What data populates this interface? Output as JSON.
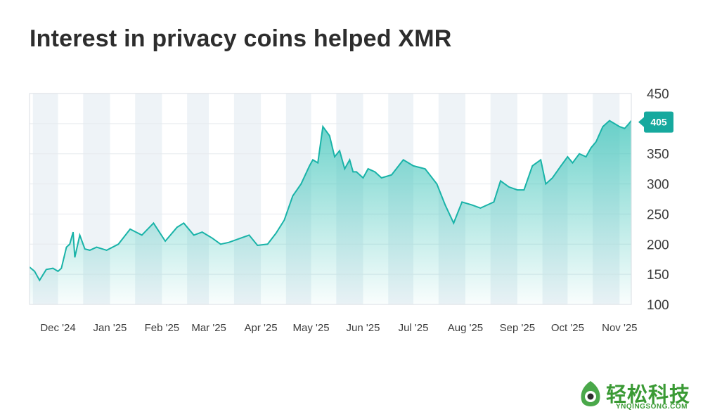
{
  "title": "Interest in privacy coins helped XMR",
  "chart_data": {
    "type": "area",
    "ylim": [
      100,
      450
    ],
    "yticks": [
      100,
      150,
      200,
      250,
      300,
      350,
      400,
      450
    ],
    "x_months": [
      "Dec '24",
      "Jan '25",
      "Feb '25",
      "Mar '25",
      "Apr '25",
      "May '25",
      "Jun '25",
      "Jul '25",
      "Aug '25",
      "Sep '25",
      "Oct '25",
      "Nov '25"
    ],
    "last_value_label": "405",
    "colors": {
      "line": "#19b3a8",
      "fill_top": "#4ecdc4",
      "band": "#eef3f7",
      "callout": "#16a99e"
    },
    "x": [
      "2024-11-14",
      "2024-11-17",
      "2024-11-20",
      "2024-11-24",
      "2024-11-28",
      "2024-12-01",
      "2024-12-03",
      "2024-12-06",
      "2024-12-08",
      "2024-12-10",
      "2024-12-11",
      "2024-12-14",
      "2024-12-17",
      "2024-12-20",
      "2024-12-24",
      "2024-12-30",
      "2025-01-06",
      "2025-01-13",
      "2025-01-20",
      "2025-01-27",
      "2025-02-03",
      "2025-02-10",
      "2025-02-14",
      "2025-02-20",
      "2025-02-25",
      "2025-03-03",
      "2025-03-08",
      "2025-03-13",
      "2025-03-20",
      "2025-03-25",
      "2025-03-30",
      "2025-04-05",
      "2025-04-10",
      "2025-04-15",
      "2025-04-20",
      "2025-04-25",
      "2025-04-30",
      "2025-05-02",
      "2025-05-05",
      "2025-05-08",
      "2025-05-12",
      "2025-05-15",
      "2025-05-18",
      "2025-05-21",
      "2025-05-24",
      "2025-05-26",
      "2025-05-28",
      "2025-06-01",
      "2025-06-04",
      "2025-06-08",
      "2025-06-12",
      "2025-06-18",
      "2025-06-25",
      "2025-07-01",
      "2025-07-08",
      "2025-07-15",
      "2025-07-20",
      "2025-07-25",
      "2025-07-30",
      "2025-08-05",
      "2025-08-10",
      "2025-08-14",
      "2025-08-18",
      "2025-08-22",
      "2025-08-27",
      "2025-09-01",
      "2025-09-05",
      "2025-09-10",
      "2025-09-15",
      "2025-09-18",
      "2025-09-22",
      "2025-09-27",
      "2025-10-01",
      "2025-10-04",
      "2025-10-08",
      "2025-10-12",
      "2025-10-15",
      "2025-10-18",
      "2025-10-22",
      "2025-10-26",
      "2025-10-29",
      "2025-11-01",
      "2025-11-04",
      "2025-11-06",
      "2025-11-08"
    ],
    "values": [
      162,
      155,
      140,
      158,
      160,
      155,
      160,
      195,
      200,
      220,
      178,
      215,
      192,
      190,
      195,
      190,
      200,
      225,
      215,
      235,
      205,
      228,
      235,
      215,
      220,
      210,
      200,
      203,
      210,
      215,
      198,
      200,
      218,
      240,
      280,
      300,
      330,
      340,
      335,
      395,
      380,
      345,
      355,
      325,
      340,
      320,
      320,
      310,
      325,
      320,
      310,
      315,
      340,
      330,
      325,
      300,
      265,
      235,
      270,
      265,
      260,
      265,
      270,
      305,
      295,
      290,
      290,
      330,
      340,
      300,
      310,
      330,
      345,
      335,
      350,
      345,
      360,
      370,
      395,
      405,
      400,
      395,
      392,
      398,
      405
    ]
  },
  "logo": {
    "main": "轻松科技",
    "sub": "YNQINGSONG.COM"
  }
}
